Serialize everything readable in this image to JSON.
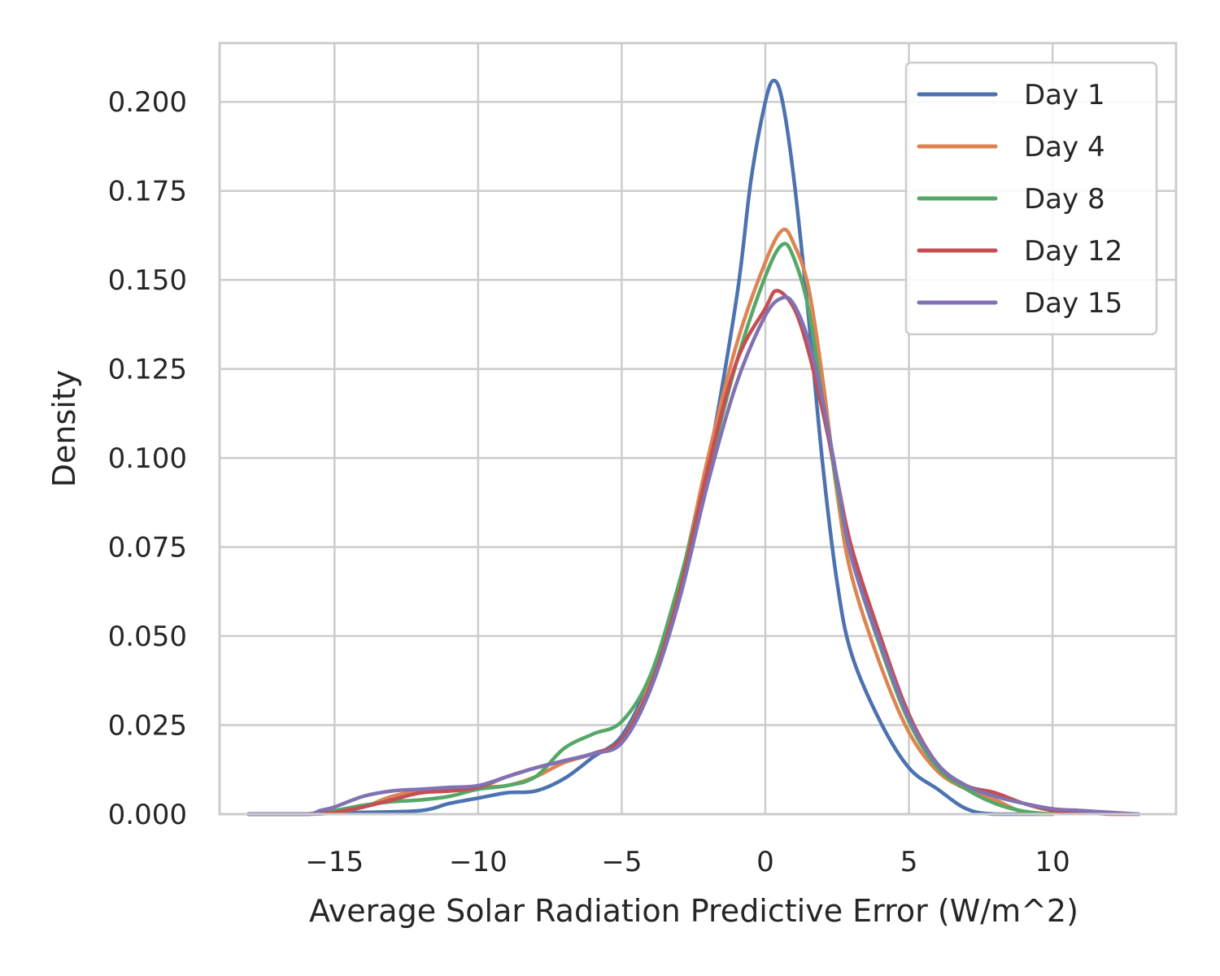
{
  "chart_data": {
    "type": "line",
    "xlabel": "Average Solar Radiation Predictive Error (W/m^2)",
    "ylabel": "Density",
    "xlim": [
      -19,
      14.3
    ],
    "ylim": [
      0,
      0.2165
    ],
    "x_ticks": [
      -15,
      -10,
      -5,
      0,
      5,
      10
    ],
    "x_tick_labels": [
      "−15",
      "−10",
      "−5",
      "0",
      "5",
      "10"
    ],
    "y_ticks": [
      0,
      0.025,
      0.05,
      0.075,
      0.1,
      0.125,
      0.15,
      0.175,
      0.2
    ],
    "y_tick_labels": [
      "0.000",
      "0.025",
      "0.050",
      "0.075",
      "0.100",
      "0.125",
      "0.150",
      "0.175",
      "0.200"
    ],
    "grid": true,
    "legend_position": "top-right",
    "series": [
      {
        "name": "Day 1",
        "color": "#4c72b0",
        "points": [
          [
            -18,
            0
          ],
          [
            -16,
            0
          ],
          [
            -14,
            0.0005
          ],
          [
            -12,
            0.001
          ],
          [
            -11,
            0.003
          ],
          [
            -10,
            0.0045
          ],
          [
            -9,
            0.006
          ],
          [
            -8,
            0.0065
          ],
          [
            -7,
            0.01
          ],
          [
            -6,
            0.016
          ],
          [
            -5,
            0.022
          ],
          [
            -4,
            0.038
          ],
          [
            -3,
            0.062
          ],
          [
            -2,
            0.098
          ],
          [
            -1,
            0.145
          ],
          [
            -0.5,
            0.178
          ],
          [
            0,
            0.2
          ],
          [
            0.3,
            0.206
          ],
          [
            0.6,
            0.2
          ],
          [
            1,
            0.178
          ],
          [
            1.5,
            0.14
          ],
          [
            2,
            0.098
          ],
          [
            2.5,
            0.065
          ],
          [
            3,
            0.045
          ],
          [
            4,
            0.026
          ],
          [
            5,
            0.013
          ],
          [
            6,
            0.007
          ],
          [
            7,
            0.0015
          ],
          [
            8,
            0
          ],
          [
            10,
            0
          ]
        ]
      },
      {
        "name": "Day 4",
        "color": "#dd8452",
        "points": [
          [
            -18,
            0
          ],
          [
            -16,
            0
          ],
          [
            -15,
            0.0005
          ],
          [
            -14,
            0.002
          ],
          [
            -13,
            0.005
          ],
          [
            -12,
            0.0065
          ],
          [
            -11,
            0.0065
          ],
          [
            -10,
            0.0075
          ],
          [
            -9,
            0.008
          ],
          [
            -8,
            0.0105
          ],
          [
            -7,
            0.0145
          ],
          [
            -6,
            0.017
          ],
          [
            -5,
            0.021
          ],
          [
            -4,
            0.037
          ],
          [
            -3,
            0.064
          ],
          [
            -2,
            0.1
          ],
          [
            -1,
            0.132
          ],
          [
            0,
            0.155
          ],
          [
            0.6,
            0.164
          ],
          [
            1,
            0.16
          ],
          [
            1.5,
            0.148
          ],
          [
            2,
            0.122
          ],
          [
            2.5,
            0.09
          ],
          [
            3,
            0.067
          ],
          [
            4,
            0.042
          ],
          [
            5,
            0.023
          ],
          [
            6,
            0.012
          ],
          [
            7,
            0.007
          ],
          [
            8,
            0.004
          ],
          [
            9,
            0.0005
          ],
          [
            10,
            0
          ]
        ]
      },
      {
        "name": "Day 8",
        "color": "#55a868",
        "points": [
          [
            -18,
            0
          ],
          [
            -16,
            0
          ],
          [
            -15,
            0.001
          ],
          [
            -14,
            0.0025
          ],
          [
            -13,
            0.0035
          ],
          [
            -12,
            0.004
          ],
          [
            -11,
            0.005
          ],
          [
            -10,
            0.007
          ],
          [
            -9,
            0.008
          ],
          [
            -8,
            0.0105
          ],
          [
            -7,
            0.0185
          ],
          [
            -6,
            0.0225
          ],
          [
            -5,
            0.026
          ],
          [
            -4,
            0.039
          ],
          [
            -3,
            0.065
          ],
          [
            -2,
            0.096
          ],
          [
            -1,
            0.127
          ],
          [
            0,
            0.151
          ],
          [
            0.6,
            0.16
          ],
          [
            1,
            0.156
          ],
          [
            1.5,
            0.142
          ],
          [
            2,
            0.116
          ],
          [
            2.5,
            0.092
          ],
          [
            3,
            0.072
          ],
          [
            4,
            0.047
          ],
          [
            5,
            0.026
          ],
          [
            6,
            0.013
          ],
          [
            7,
            0.007
          ],
          [
            8,
            0.003
          ],
          [
            9,
            0.0008
          ],
          [
            10,
            0
          ]
        ]
      },
      {
        "name": "Day 12",
        "color": "#c44e52",
        "points": [
          [
            -18,
            0
          ],
          [
            -16,
            0
          ],
          [
            -15,
            0.0005
          ],
          [
            -14,
            0.002
          ],
          [
            -13,
            0.004
          ],
          [
            -12,
            0.006
          ],
          [
            -11,
            0.0065
          ],
          [
            -10,
            0.0075
          ],
          [
            -9,
            0.0105
          ],
          [
            -8,
            0.013
          ],
          [
            -7,
            0.015
          ],
          [
            -6,
            0.017
          ],
          [
            -5,
            0.021
          ],
          [
            -4,
            0.036
          ],
          [
            -3,
            0.062
          ],
          [
            -2,
            0.097
          ],
          [
            -1,
            0.127
          ],
          [
            0,
            0.142
          ],
          [
            0.4,
            0.147
          ],
          [
            1,
            0.142
          ],
          [
            1.5,
            0.13
          ],
          [
            2,
            0.113
          ],
          [
            2.5,
            0.094
          ],
          [
            3,
            0.075
          ],
          [
            4,
            0.05
          ],
          [
            5,
            0.028
          ],
          [
            6,
            0.014
          ],
          [
            7,
            0.008
          ],
          [
            8,
            0.006
          ],
          [
            9,
            0.003
          ],
          [
            10,
            0.001
          ],
          [
            11,
            0.0005
          ],
          [
            12,
            0
          ],
          [
            13,
            0
          ]
        ]
      },
      {
        "name": "Day 15",
        "color": "#8172b3",
        "points": [
          [
            -18,
            0
          ],
          [
            -16,
            0
          ],
          [
            -15.5,
            0.001
          ],
          [
            -15,
            0.002
          ],
          [
            -14,
            0.005
          ],
          [
            -13,
            0.0065
          ],
          [
            -12,
            0.007
          ],
          [
            -11,
            0.0075
          ],
          [
            -10,
            0.008
          ],
          [
            -9,
            0.0105
          ],
          [
            -8,
            0.013
          ],
          [
            -7,
            0.015
          ],
          [
            -6,
            0.017
          ],
          [
            -5,
            0.02
          ],
          [
            -4,
            0.035
          ],
          [
            -3,
            0.06
          ],
          [
            -2,
            0.093
          ],
          [
            -1,
            0.121
          ],
          [
            0,
            0.14
          ],
          [
            0.6,
            0.145
          ],
          [
            1,
            0.143
          ],
          [
            1.5,
            0.133
          ],
          [
            2,
            0.116
          ],
          [
            2.5,
            0.094
          ],
          [
            3,
            0.072
          ],
          [
            4,
            0.048
          ],
          [
            5,
            0.027
          ],
          [
            6,
            0.014
          ],
          [
            7,
            0.008
          ],
          [
            8,
            0.005
          ],
          [
            9,
            0.003
          ],
          [
            10,
            0.0015
          ],
          [
            11,
            0.001
          ],
          [
            12,
            0.0005
          ],
          [
            13,
            0
          ]
        ]
      }
    ]
  }
}
